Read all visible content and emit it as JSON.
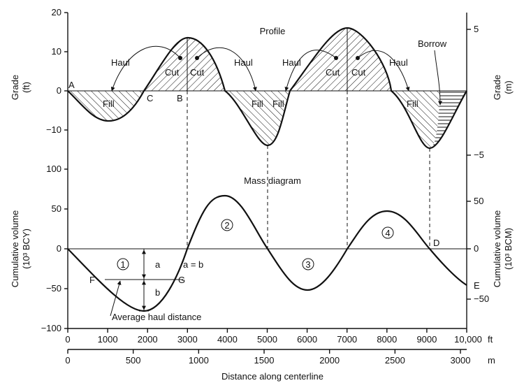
{
  "profile": {
    "title": "Profile",
    "left_axis": {
      "label": [
        "Grade",
        "(ft)"
      ],
      "ticks": [
        "20",
        "10",
        "0",
        "−10"
      ]
    },
    "right_axis": {
      "label": [
        "Grade",
        "(m)"
      ],
      "ticks": [
        "5",
        "−5"
      ]
    },
    "labels": {
      "A": "A",
      "B": "B",
      "C": "C",
      "haul": "Haul",
      "cut": "Cut",
      "fill": "Fill",
      "borrow": "Borrow"
    }
  },
  "mass": {
    "title": "Mass diagram",
    "left_axis": {
      "label": [
        "Cumulative volume",
        "(10³ BCY)"
      ],
      "ticks": [
        "100",
        "50",
        "0",
        "−50",
        "−100"
      ]
    },
    "right_axis": {
      "label": [
        "Cumulative volume",
        "(10³ BCM)"
      ],
      "ticks": [
        "50",
        "0",
        "−50"
      ]
    },
    "labels": {
      "D": "D",
      "E": "E",
      "F": "F",
      "G": "G",
      "a": "a",
      "b": "b",
      "a_eq_b": "a = b",
      "avg_haul": "Average haul distance",
      "n1": "1",
      "n2": "2",
      "n3": "3",
      "n4": "4"
    }
  },
  "x_axis": {
    "ft_ticks": [
      "0",
      "1000",
      "2000",
      "3000",
      "4000",
      "5000",
      "6000",
      "7000",
      "8000",
      "9000",
      "10,000"
    ],
    "ft_unit": "ft",
    "m_ticks": [
      "0",
      "500",
      "1000",
      "1500",
      "2000",
      "2500",
      "3000"
    ],
    "m_unit": "m",
    "title": "Distance along centerline"
  },
  "chart_data": {
    "type": "line",
    "profile_grade_ft": {
      "x": [
        0,
        1000,
        2000,
        3000,
        4000,
        5000,
        6000,
        7000,
        8000,
        9000,
        10000
      ],
      "y": [
        0,
        -7,
        0,
        13,
        0,
        -13,
        0,
        15.5,
        0,
        -15,
        0
      ]
    },
    "mass_cumulative_bcy": {
      "x": [
        0,
        2000,
        3000,
        4000,
        5000,
        6000,
        7000,
        8000,
        9000,
        10000
      ],
      "y": [
        0,
        -78,
        0,
        67,
        0,
        -52,
        0,
        47,
        0,
        -45
      ]
    },
    "x_unit": "ft",
    "profile_ylim": [
      -20,
      20
    ],
    "mass_ylim": [
      -100,
      100
    ]
  }
}
